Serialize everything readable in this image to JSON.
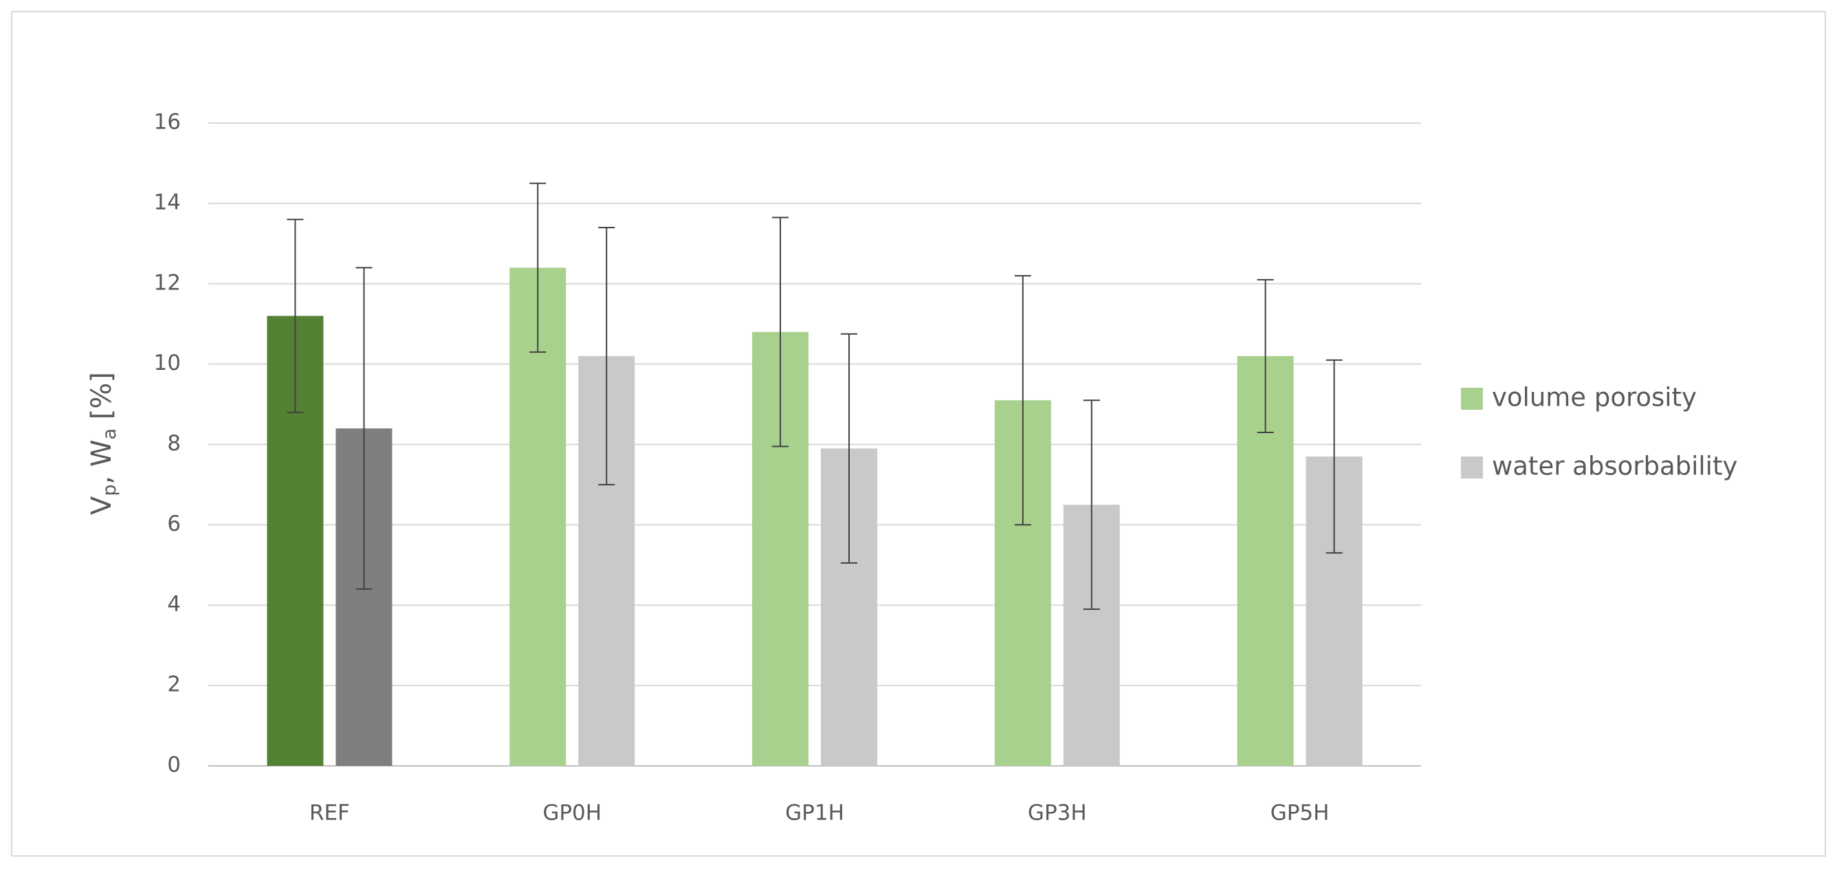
{
  "chart_data": {
    "type": "bar",
    "ylabel": [
      {
        "text": "V"
      },
      {
        "text": "p",
        "sub": true
      },
      {
        "text": ", W"
      },
      {
        "text": "a",
        "sub": true
      },
      {
        "text": " [%]"
      }
    ],
    "categories": [
      "REF",
      "GP0H",
      "GP1H",
      "GP3H",
      "GP5H"
    ],
    "series": [
      {
        "name": "volume porosity",
        "color": "#a9d18e",
        "colors": [
          "#548235",
          "#a9d18e",
          "#a9d18e",
          "#a9d18e",
          "#a9d18e"
        ],
        "values": [
          11.2,
          12.4,
          10.8,
          9.1,
          10.2
        ],
        "errors": [
          2.4,
          2.1,
          2.85,
          3.1,
          1.9
        ]
      },
      {
        "name": "water absorbability",
        "color": "#c9c9c9",
        "colors": [
          "#7f7f7f",
          "#c9c9c9",
          "#c9c9c9",
          "#c9c9c9",
          "#c9c9c9"
        ],
        "values": [
          8.4,
          10.2,
          7.9,
          6.5,
          7.7
        ],
        "errors": [
          4.0,
          3.2,
          2.85,
          2.6,
          2.4
        ]
      }
    ],
    "ylim": [
      0,
      16
    ],
    "yticks": [
      0,
      2,
      4,
      6,
      8,
      10,
      12,
      14,
      16
    ],
    "grid": true,
    "legend": "right"
  }
}
